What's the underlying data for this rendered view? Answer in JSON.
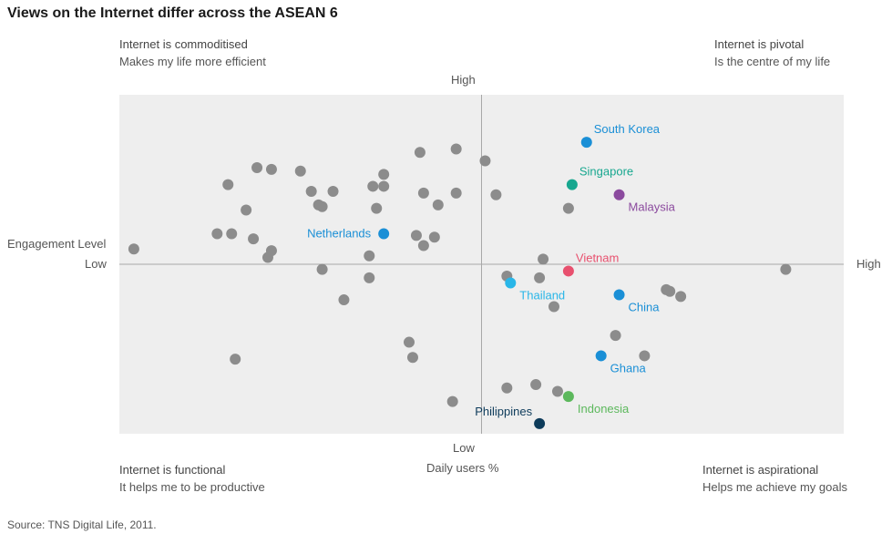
{
  "title": "Views on the Internet differ across the ASEAN 6",
  "source": "Source: TNS Digital Life, 2011.",
  "quadrants": {
    "top_left": {
      "line1": "Internet is commoditised",
      "line2": "Makes my life more efficient"
    },
    "top_right": {
      "line1": "Internet is pivotal",
      "line2": "Is the centre of my life"
    },
    "bottom_left": {
      "line1": "Internet is functional",
      "line2": "It helps me to be productive"
    },
    "bottom_right": {
      "line1": "Internet is aspirational",
      "line2": "Helps me achieve my goals"
    }
  },
  "axes": {
    "y_high": "High",
    "y_low": "Low",
    "x_low": "Low",
    "x_high": "High",
    "xlabel": "Daily users %",
    "ylabel": "Engagement Level"
  },
  "chart_data": {
    "type": "scatter",
    "title": "Views on the Internet differ across the ASEAN 6",
    "xlabel": "Daily users %",
    "ylabel": "Engagement Level",
    "xlim": [
      0,
      100
    ],
    "ylim": [
      0,
      100
    ],
    "grid": false,
    "legend": "none",
    "background_color": "#eeeeee",
    "axis_color": "#a8a8a8",
    "grey_color": "#8c8c8c",
    "highlighted": [
      {
        "name": "South Korea",
        "x": 64.5,
        "y": 86,
        "color": "#1a8fd6",
        "label_pos": "above-right"
      },
      {
        "name": "Singapore",
        "x": 62.5,
        "y": 73.5,
        "color": "#17a78f",
        "label_pos": "above-right"
      },
      {
        "name": "Malaysia",
        "x": 69,
        "y": 70.5,
        "color": "#8b4a9e",
        "label_pos": "below-right"
      },
      {
        "name": "Netherlands",
        "x": 36.5,
        "y": 59,
        "color": "#1a8fd6",
        "label_pos": "left"
      },
      {
        "name": "Vietnam",
        "x": 62,
        "y": 48,
        "color": "#e8506e",
        "label_pos": "above-right"
      },
      {
        "name": "Thailand",
        "x": 54,
        "y": 44.5,
        "color": "#29b6e8",
        "label_pos": "below-right"
      },
      {
        "name": "China",
        "x": 69,
        "y": 41,
        "color": "#1a8fd6",
        "label_pos": "below-right"
      },
      {
        "name": "Ghana",
        "x": 66.5,
        "y": 23,
        "color": "#1a8fd6",
        "label_pos": "below-right"
      },
      {
        "name": "Indonesia",
        "x": 62,
        "y": 11,
        "color": "#5cb85c",
        "label_pos": "below-right"
      },
      {
        "name": "Philippines",
        "x": 58,
        "y": 3,
        "color": "#0d3b5a",
        "label_pos": "above-left"
      }
    ],
    "other_points": [
      [
        58.5,
        51.5
      ],
      [
        2,
        54.5
      ],
      [
        15,
        73.5
      ],
      [
        19,
        78.5
      ],
      [
        21,
        78
      ],
      [
        25,
        77.5
      ],
      [
        26.5,
        71.5
      ],
      [
        29.5,
        71.5
      ],
      [
        27.5,
        67.5
      ],
      [
        28,
        67
      ],
      [
        35,
        73
      ],
      [
        36.5,
        76.5
      ],
      [
        36.5,
        73
      ],
      [
        35.5,
        66.5
      ],
      [
        17.5,
        66
      ],
      [
        13.5,
        59
      ],
      [
        15.5,
        59
      ],
      [
        18.5,
        57.5
      ],
      [
        21,
        54
      ],
      [
        20.5,
        52
      ],
      [
        34.5,
        52.5
      ],
      [
        41.5,
        83
      ],
      [
        46.5,
        84
      ],
      [
        50.5,
        80.5
      ],
      [
        42,
        71
      ],
      [
        44,
        67.5
      ],
      [
        46.5,
        71
      ],
      [
        52,
        70.5
      ],
      [
        41,
        58.5
      ],
      [
        43.5,
        58
      ],
      [
        42,
        55.5
      ],
      [
        28,
        48.5
      ],
      [
        34.5,
        46
      ],
      [
        31,
        39.5
      ],
      [
        53.5,
        46.5
      ],
      [
        58,
        46
      ],
      [
        60,
        37.5
      ],
      [
        62,
        66.5
      ],
      [
        68.5,
        29
      ],
      [
        75.5,
        42.5
      ],
      [
        76,
        42
      ],
      [
        77.5,
        40.5
      ],
      [
        92,
        48.5
      ],
      [
        40,
        27
      ],
      [
        40.5,
        22.5
      ],
      [
        72.5,
        23
      ],
      [
        16,
        22
      ],
      [
        46,
        9.5
      ],
      [
        53.5,
        13.5
      ],
      [
        57.5,
        14.5
      ],
      [
        60.5,
        12.5
      ]
    ]
  }
}
